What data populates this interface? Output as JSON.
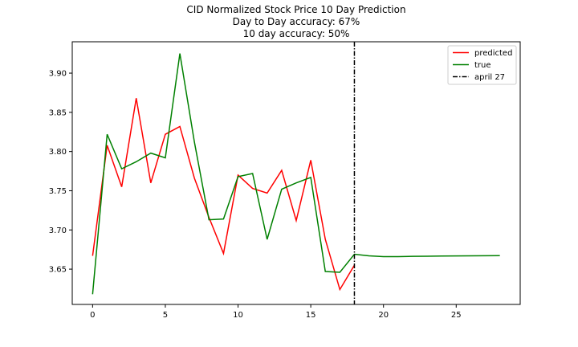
{
  "chart_data": {
    "type": "line",
    "title": "CID Normalized Stock Price 10 Day Prediction",
    "subtitle_lines": [
      "Day to Day accuracy: 67%",
      "10 day accuracy: 50%"
    ],
    "xlabel": "",
    "ylabel": "",
    "xlim": [
      -1.4,
      29.4
    ],
    "ylim": [
      3.605,
      3.94
    ],
    "xticks": [
      0,
      5,
      10,
      15,
      20,
      25
    ],
    "yticks": [
      3.65,
      3.7,
      3.75,
      3.8,
      3.85,
      3.9
    ],
    "grid": false,
    "legend_position": "top-right",
    "series": [
      {
        "name": "predicted",
        "color": "#ff0000",
        "x": [
          0,
          1,
          2,
          3,
          4,
          5,
          6,
          7,
          8,
          9,
          10,
          11,
          12,
          13,
          14,
          15,
          16,
          17,
          18
        ],
        "values": [
          3.667,
          3.808,
          3.755,
          3.868,
          3.76,
          3.822,
          3.832,
          3.766,
          3.716,
          3.67,
          3.77,
          3.753,
          3.747,
          3.776,
          3.712,
          3.789,
          3.688,
          3.624,
          3.655
        ]
      },
      {
        "name": "true",
        "color": "#008000",
        "x": [
          0,
          1,
          2,
          3,
          4,
          5,
          6,
          7,
          8,
          9,
          10,
          11,
          12,
          13,
          14,
          15,
          16,
          17,
          18,
          19,
          20,
          21,
          22,
          23,
          24,
          25,
          26,
          27,
          28
        ],
        "values": [
          3.618,
          3.822,
          3.778,
          3.787,
          3.798,
          3.792,
          3.925,
          3.812,
          3.713,
          3.714,
          3.768,
          3.772,
          3.688,
          3.752,
          3.76,
          3.767,
          3.647,
          3.646,
          3.669,
          3.667,
          3.666,
          3.666,
          3.6663,
          3.6665,
          3.6667,
          3.6668,
          3.667,
          3.6671,
          3.6672
        ]
      }
    ],
    "vline": {
      "name": "april 27",
      "x": 18,
      "color": "#000000",
      "style": "dashdot"
    }
  }
}
